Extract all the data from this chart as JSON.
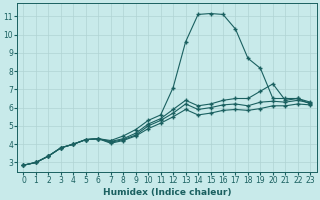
{
  "title": "",
  "xlabel": "Humidex (Indice chaleur)",
  "bg_color": "#c8eaea",
  "line_color": "#1a6060",
  "grid_color": "#b0d4d4",
  "xlim": [
    -0.5,
    23.5
  ],
  "ylim": [
    2.5,
    11.7
  ],
  "xticks": [
    0,
    1,
    2,
    3,
    4,
    5,
    6,
    7,
    8,
    9,
    10,
    11,
    12,
    13,
    14,
    15,
    16,
    17,
    18,
    19,
    20,
    21,
    22,
    23
  ],
  "yticks": [
    3,
    4,
    5,
    6,
    7,
    8,
    9,
    10,
    11
  ],
  "lines": [
    {
      "x": [
        0,
        1,
        2,
        3,
        4,
        5,
        6,
        7,
        8,
        9,
        10,
        11,
        12,
        13,
        14,
        15,
        16,
        17,
        18,
        19,
        20,
        21,
        22,
        23
      ],
      "y": [
        2.85,
        3.0,
        3.35,
        3.8,
        4.0,
        4.25,
        4.3,
        4.2,
        4.45,
        4.8,
        5.3,
        5.6,
        7.1,
        9.6,
        11.1,
        11.15,
        11.1,
        10.3,
        8.7,
        8.15,
        6.5,
        6.5,
        6.5,
        6.2
      ]
    },
    {
      "x": [
        0,
        1,
        2,
        3,
        4,
        5,
        6,
        7,
        8,
        9,
        10,
        11,
        12,
        13,
        14,
        15,
        16,
        17,
        18,
        19,
        20,
        21,
        22,
        23
      ],
      "y": [
        2.85,
        3.0,
        3.35,
        3.8,
        4.0,
        4.25,
        4.3,
        4.15,
        4.3,
        4.6,
        5.1,
        5.4,
        5.9,
        6.4,
        6.1,
        6.2,
        6.4,
        6.5,
        6.5,
        6.9,
        7.3,
        6.4,
        6.5,
        6.3
      ]
    },
    {
      "x": [
        0,
        1,
        2,
        3,
        4,
        5,
        6,
        7,
        8,
        9,
        10,
        11,
        12,
        13,
        14,
        15,
        16,
        17,
        18,
        19,
        20,
        21,
        22,
        23
      ],
      "y": [
        2.85,
        3.0,
        3.35,
        3.8,
        4.0,
        4.25,
        4.3,
        4.1,
        4.25,
        4.5,
        5.0,
        5.3,
        5.7,
        6.2,
        5.9,
        6.0,
        6.15,
        6.2,
        6.1,
        6.3,
        6.35,
        6.3,
        6.4,
        6.25
      ]
    },
    {
      "x": [
        0,
        1,
        2,
        3,
        4,
        5,
        6,
        7,
        8,
        9,
        10,
        11,
        12,
        13,
        14,
        15,
        16,
        17,
        18,
        19,
        20,
        21,
        22,
        23
      ],
      "y": [
        2.85,
        3.0,
        3.35,
        3.8,
        4.0,
        4.25,
        4.3,
        4.05,
        4.2,
        4.45,
        4.85,
        5.15,
        5.5,
        5.9,
        5.6,
        5.7,
        5.85,
        5.9,
        5.85,
        5.95,
        6.1,
        6.1,
        6.2,
        6.15
      ]
    }
  ]
}
